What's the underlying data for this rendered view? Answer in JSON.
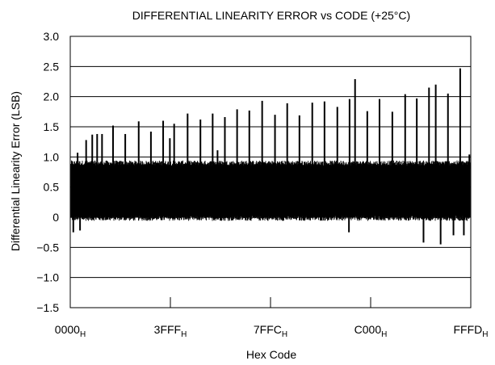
{
  "chart_data": {
    "type": "line",
    "title": "DIFFERENTIAL LINEARITY ERROR vs CODE (+25°C)",
    "xlabel": "Hex Code",
    "ylabel": "Differential Linearity Error (LSB)",
    "x_ticks": [
      {
        "main": "0000",
        "sub": "H"
      },
      {
        "main": "3FFF",
        "sub": "H"
      },
      {
        "main": "7FFC",
        "sub": "H"
      },
      {
        "main": "C000",
        "sub": "H"
      },
      {
        "main": "FFFD",
        "sub": "H"
      }
    ],
    "y_ticks": [
      "3.0",
      "2.5",
      "2.0",
      "1.5",
      "1.0",
      "0.5",
      "0",
      "−0.5",
      "−1.0",
      "−1.5"
    ],
    "ylim": [
      -1.5,
      3.0
    ],
    "xlim": [
      0,
      65533
    ],
    "grid": true,
    "band": {
      "lower": 0.0,
      "upper": 0.9
    },
    "spikes_up": [
      {
        "code": 1200,
        "value": 1.07
      },
      {
        "code": 2600,
        "value": 1.28
      },
      {
        "code": 3600,
        "value": 1.37
      },
      {
        "code": 4400,
        "value": 1.38
      },
      {
        "code": 5200,
        "value": 1.38
      },
      {
        "code": 7000,
        "value": 1.52
      },
      {
        "code": 9000,
        "value": 1.38
      },
      {
        "code": 11200,
        "value": 1.59
      },
      {
        "code": 13200,
        "value": 1.42
      },
      {
        "code": 15200,
        "value": 1.6
      },
      {
        "code": 16300,
        "value": 1.31
      },
      {
        "code": 17000,
        "value": 1.55
      },
      {
        "code": 19200,
        "value": 1.72
      },
      {
        "code": 21300,
        "value": 1.62
      },
      {
        "code": 23300,
        "value": 1.72
      },
      {
        "code": 24100,
        "value": 1.11
      },
      {
        "code": 25300,
        "value": 1.66
      },
      {
        "code": 27300,
        "value": 1.79
      },
      {
        "code": 29300,
        "value": 1.77
      },
      {
        "code": 31400,
        "value": 1.93
      },
      {
        "code": 33500,
        "value": 1.7
      },
      {
        "code": 35500,
        "value": 1.89
      },
      {
        "code": 37500,
        "value": 1.69
      },
      {
        "code": 39600,
        "value": 1.9
      },
      {
        "code": 41600,
        "value": 1.92
      },
      {
        "code": 43700,
        "value": 1.83
      },
      {
        "code": 45700,
        "value": 1.96
      },
      {
        "code": 46600,
        "value": 2.29
      },
      {
        "code": 48600,
        "value": 1.76
      },
      {
        "code": 50600,
        "value": 1.96
      },
      {
        "code": 52700,
        "value": 1.75
      },
      {
        "code": 54800,
        "value": 2.04
      },
      {
        "code": 56700,
        "value": 1.97
      },
      {
        "code": 58700,
        "value": 2.15
      },
      {
        "code": 59800,
        "value": 2.2
      },
      {
        "code": 61800,
        "value": 2.05
      },
      {
        "code": 63800,
        "value": 2.47
      },
      {
        "code": 65300,
        "value": 1.04
      }
    ],
    "spikes_down": [
      {
        "code": 500,
        "value": -0.25
      },
      {
        "code": 1600,
        "value": -0.22
      },
      {
        "code": 45600,
        "value": -0.25
      },
      {
        "code": 57800,
        "value": -0.42
      },
      {
        "code": 60600,
        "value": -0.45
      },
      {
        "code": 62700,
        "value": -0.3
      },
      {
        "code": 64400,
        "value": -0.3
      }
    ]
  }
}
